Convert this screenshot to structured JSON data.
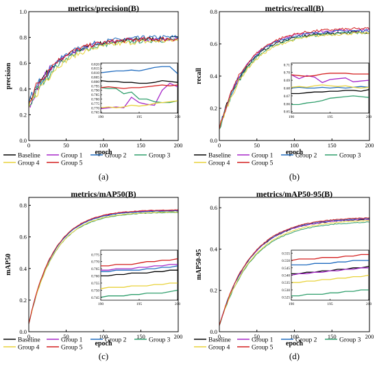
{
  "colors": {
    "Baseline": "#000000",
    "Group 1": "#a626c9",
    "Group 2": "#1f6bbf",
    "Group 3": "#2e9e6b",
    "Group 4": "#e8d23a",
    "Group 5": "#d41e1e"
  },
  "legend_labels": [
    "Baseline",
    "Group 1",
    "Group 2",
    "Group 3",
    "Group 4",
    "Group 5"
  ],
  "chart_data": [
    {
      "id": "a",
      "type": "line",
      "caption": "(a)",
      "title": "metrics/precision(B)",
      "xlabel": "epoch",
      "ylabel": "precision",
      "xlim": [
        0,
        200
      ],
      "ylim": [
        0,
        1.0
      ],
      "xticks": [
        "0",
        "50",
        "100",
        "150",
        "200"
      ],
      "yticks": [
        "0.0",
        "0.2",
        "0.4",
        "0.6",
        "0.8",
        "1.0"
      ],
      "curve_params": {
        "Baseline": [
          0.795,
          0.28,
          0.026
        ],
        "Group 1": [
          0.79,
          0.27,
          0.027
        ],
        "Group 2": [
          0.805,
          0.29,
          0.026
        ],
        "Group 3": [
          0.785,
          0.26,
          0.025
        ],
        "Group 4": [
          0.78,
          0.25,
          0.024
        ],
        "Group 5": [
          0.792,
          0.3,
          0.027
        ]
      },
      "noise": 0.018,
      "inset": {
        "xlim": [
          190,
          200
        ],
        "ylim": [
          0.764,
          0.821
        ],
        "xticks": [
          "190",
          "195",
          "200"
        ],
        "yticks": [
          "0.820",
          "0.815",
          "0.810",
          "0.805",
          "0.800",
          "0.795",
          "0.790",
          "0.785",
          "0.780",
          "0.775",
          "0.770",
          "0.765"
        ],
        "ytick_values": [
          0.82,
          0.815,
          0.81,
          0.805,
          0.8,
          0.795,
          0.79,
          0.785,
          0.78,
          0.775,
          0.77,
          0.765
        ],
        "x": [
          190,
          191,
          192,
          193,
          194,
          195,
          196,
          197,
          198,
          199,
          200
        ],
        "series": [
          {
            "name": "Baseline",
            "values": [
              0.801,
              0.8,
              0.8,
              0.799,
              0.799,
              0.798,
              0.798,
              0.799,
              0.801,
              0.8,
              0.799
            ]
          },
          {
            "name": "Group 1",
            "values": [
              0.769,
              0.77,
              0.771,
              0.77,
              0.782,
              0.776,
              0.774,
              0.773,
              0.79,
              0.798,
              0.794
            ]
          },
          {
            "name": "Group 2",
            "values": [
              0.81,
              0.811,
              0.812,
              0.812,
              0.813,
              0.812,
              0.814,
              0.816,
              0.817,
              0.817,
              0.809
            ]
          },
          {
            "name": "Group 3",
            "values": [
              0.793,
              0.792,
              0.792,
              0.786,
              0.788,
              0.78,
              0.78,
              0.777,
              0.776,
              0.776,
              0.778
            ]
          },
          {
            "name": "Group 4",
            "values": [
              0.77,
              0.771,
              0.77,
              0.771,
              0.773,
              0.772,
              0.773,
              0.775,
              0.776,
              0.777,
              0.778
            ]
          },
          {
            "name": "Group 5",
            "values": [
              0.793,
              0.794,
              0.793,
              0.792,
              0.793,
              0.793,
              0.794,
              0.795,
              0.796,
              0.795,
              0.796
            ]
          }
        ]
      }
    },
    {
      "id": "b",
      "type": "line",
      "caption": "(b)",
      "title": "metrics/recall(B)",
      "xlabel": "epoch",
      "ylabel": "recall",
      "xlim": [
        0,
        200
      ],
      "ylim": [
        0,
        0.8
      ],
      "xticks": [
        "0",
        "50",
        "100",
        "150",
        "200"
      ],
      "yticks": [
        "0.0",
        "0.2",
        "0.4",
        "0.6",
        "0.8"
      ],
      "curve_params": {
        "Baseline": [
          0.675,
          0.07,
          0.028
        ],
        "Group 1": [
          0.69,
          0.07,
          0.028
        ],
        "Group 2": [
          0.685,
          0.07,
          0.028
        ],
        "Group 3": [
          0.672,
          0.07,
          0.027
        ],
        "Group 4": [
          0.67,
          0.07,
          0.026
        ],
        "Group 5": [
          0.697,
          0.07,
          0.028
        ]
      },
      "noise": 0.008,
      "inset": {
        "xlim": [
          190,
          200
        ],
        "ylim": [
          0.648,
          0.712
        ],
        "xticks": [
          "190",
          "195",
          "200"
        ],
        "yticks": [
          "0.71",
          "0.70",
          "0.69",
          "0.68",
          "0.67",
          "0.66",
          "0.65"
        ],
        "ytick_values": [
          0.71,
          0.7,
          0.69,
          0.68,
          0.67,
          0.66,
          0.65
        ],
        "x": [
          190,
          191,
          192,
          193,
          194,
          195,
          196,
          197,
          198,
          199,
          200
        ],
        "series": [
          {
            "name": "Baseline",
            "values": [
              0.673,
              0.673,
              0.674,
              0.675,
              0.675,
              0.676,
              0.676,
              0.677,
              0.677,
              0.676,
              0.678
            ]
          },
          {
            "name": "Group 1",
            "values": [
              0.697,
              0.692,
              0.696,
              0.694,
              0.687,
              0.691,
              0.692,
              0.693,
              0.688,
              0.689,
              0.69
            ]
          },
          {
            "name": "Group 2",
            "values": [
              0.68,
              0.681,
              0.68,
              0.68,
              0.681,
              0.68,
              0.681,
              0.68,
              0.681,
              0.682,
              0.681
            ]
          },
          {
            "name": "Group 3",
            "values": [
              0.659,
              0.659,
              0.661,
              0.662,
              0.664,
              0.667,
              0.668,
              0.669,
              0.67,
              0.669,
              0.668
            ]
          },
          {
            "name": "Group 4",
            "values": [
              0.681,
              0.682,
              0.681,
              0.683,
              0.684,
              0.683,
              0.682,
              0.683,
              0.681,
              0.68,
              0.681
            ]
          },
          {
            "name": "Group 5",
            "values": [
              0.697,
              0.696,
              0.695,
              0.696,
              0.698,
              0.699,
              0.699,
              0.699,
              0.698,
              0.698,
              0.698
            ]
          }
        ]
      }
    },
    {
      "id": "c",
      "type": "line",
      "caption": "(c)",
      "title": "metrics/mAP50(B)",
      "xlabel": "epoch",
      "ylabel": "mAP50",
      "xlim": [
        0,
        200
      ],
      "ylim": [
        0,
        0.85
      ],
      "xticks": [
        "0",
        "50",
        "100",
        "150",
        "200"
      ],
      "yticks": [
        "0.0",
        "0.2",
        "0.4",
        "0.6",
        "0.8"
      ],
      "curve_params": {
        "Baseline": [
          0.768,
          0.05,
          0.03
        ],
        "Group 1": [
          0.769,
          0.05,
          0.03
        ],
        "Group 2": [
          0.766,
          0.05,
          0.03
        ],
        "Group 3": [
          0.757,
          0.05,
          0.029
        ],
        "Group 4": [
          0.76,
          0.05,
          0.029
        ],
        "Group 5": [
          0.773,
          0.05,
          0.03
        ]
      },
      "noise": 0.002,
      "inset": {
        "xlim": [
          190,
          200
        ],
        "ylim": [
          0.743,
          0.778
        ],
        "xticks": [
          "190",
          "195",
          "200"
        ],
        "yticks": [
          "0.775",
          "0.770",
          "0.765",
          "0.760",
          "0.755",
          "0.750",
          "0.745"
        ],
        "ytick_values": [
          0.775,
          0.77,
          0.765,
          0.76,
          0.755,
          0.75,
          0.745
        ],
        "x": [
          190,
          191,
          192,
          193,
          194,
          195,
          196,
          197,
          198,
          199,
          200
        ],
        "series": [
          {
            "name": "Baseline",
            "values": [
              0.76,
              0.76,
              0.761,
              0.761,
              0.762,
              0.762,
              0.762,
              0.763,
              0.763,
              0.764,
              0.764
            ]
          },
          {
            "name": "Group 1",
            "values": [
              0.764,
              0.764,
              0.765,
              0.765,
              0.765,
              0.766,
              0.766,
              0.767,
              0.767,
              0.768,
              0.768
            ]
          },
          {
            "name": "Group 2",
            "values": [
              0.763,
              0.763,
              0.764,
              0.764,
              0.764,
              0.764,
              0.765,
              0.765,
              0.766,
              0.766,
              0.767
            ]
          },
          {
            "name": "Group 3",
            "values": [
              0.745,
              0.746,
              0.746,
              0.746,
              0.747,
              0.747,
              0.748,
              0.748,
              0.748,
              0.749,
              0.75
            ]
          },
          {
            "name": "Group 4",
            "values": [
              0.751,
              0.752,
              0.752,
              0.752,
              0.753,
              0.753,
              0.753,
              0.754,
              0.754,
              0.755,
              0.755
            ]
          },
          {
            "name": "Group 5",
            "values": [
              0.767,
              0.767,
              0.768,
              0.768,
              0.768,
              0.769,
              0.77,
              0.77,
              0.771,
              0.771,
              0.772
            ]
          }
        ]
      }
    },
    {
      "id": "d",
      "type": "line",
      "caption": "(d)",
      "title": "metrics/mAP50-95(B)",
      "xlabel": "epoch",
      "ylabel": "mAP50-95",
      "xlim": [
        0,
        200
      ],
      "ylim": [
        0,
        0.65
      ],
      "xticks": [
        "0",
        "50",
        "100",
        "150",
        "200"
      ],
      "yticks": [
        "0.0",
        "0.2",
        "0.4",
        "0.6"
      ],
      "curve_params": {
        "Baseline": [
          0.548,
          0.03,
          0.024
        ],
        "Group 1": [
          0.549,
          0.03,
          0.024
        ],
        "Group 2": [
          0.552,
          0.03,
          0.024
        ],
        "Group 3": [
          0.535,
          0.03,
          0.023
        ],
        "Group 4": [
          0.542,
          0.03,
          0.023
        ],
        "Group 5": [
          0.555,
          0.03,
          0.024
        ]
      },
      "noise": 0.002,
      "inset": {
        "xlim": [
          190,
          200
        ],
        "ylim": [
          0.523,
          0.557
        ],
        "xticks": [
          "190",
          "195",
          "200"
        ],
        "yticks": [
          "0.555",
          "0.550",
          "0.545",
          "0.540",
          "0.535",
          "0.530",
          "0.525"
        ],
        "ytick_values": [
          0.555,
          0.55,
          0.545,
          0.54,
          0.535,
          0.53,
          0.525
        ],
        "x": [
          190,
          191,
          192,
          193,
          194,
          195,
          196,
          197,
          198,
          199,
          200
        ],
        "series": [
          {
            "name": "Baseline",
            "values": [
              0.541,
              0.541,
              0.542,
              0.542,
              0.543,
              0.543,
              0.544,
              0.544,
              0.545,
              0.545,
              0.546
            ]
          },
          {
            "name": "Group 1",
            "values": [
              0.54,
              0.541,
              0.541,
              0.542,
              0.542,
              0.543,
              0.543,
              0.544,
              0.544,
              0.545,
              0.545
            ]
          },
          {
            "name": "Group 2",
            "values": [
              0.547,
              0.547,
              0.547,
              0.548,
              0.548,
              0.548,
              0.549,
              0.549,
              0.55,
              0.55,
              0.55
            ]
          },
          {
            "name": "Group 3",
            "values": [
              0.526,
              0.526,
              0.527,
              0.527,
              0.527,
              0.528,
              0.528,
              0.529,
              0.529,
              0.53,
              0.53
            ]
          },
          {
            "name": "Group 4",
            "values": [
              0.535,
              0.535,
              0.536,
              0.536,
              0.537,
              0.537,
              0.538,
              0.538,
              0.539,
              0.539,
              0.54
            ]
          },
          {
            "name": "Group 5",
            "values": [
              0.55,
              0.551,
              0.551,
              0.551,
              0.552,
              0.552,
              0.552,
              0.553,
              0.553,
              0.554,
              0.554
            ]
          }
        ]
      }
    }
  ]
}
